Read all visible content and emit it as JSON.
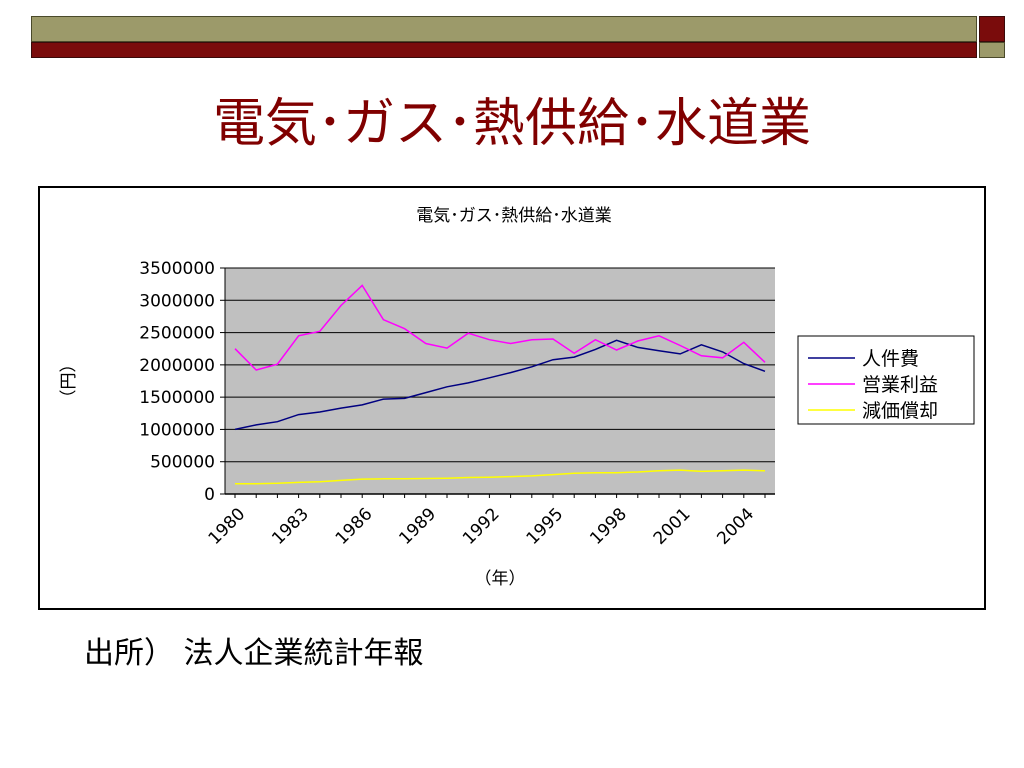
{
  "slide": {
    "title": "電気･ガス･熱供給･水道業",
    "source": "出所） 法人企業統計年報",
    "colors": {
      "accent_red": "#7a0c0c",
      "accent_olive": "#9c9a6a",
      "title": "#800000"
    }
  },
  "chart_data": {
    "type": "line",
    "title": "電気･ガス･熱供給･水道業",
    "xlabel": "（年）",
    "ylabel": "（円）",
    "ylim": [
      0,
      3500000
    ],
    "yticks": [
      0,
      500000,
      1000000,
      1500000,
      2000000,
      2500000,
      3000000,
      3500000
    ],
    "x": [
      1980,
      1981,
      1982,
      1983,
      1984,
      1985,
      1986,
      1987,
      1988,
      1989,
      1990,
      1991,
      1992,
      1993,
      1994,
      1995,
      1996,
      1997,
      1998,
      1999,
      2000,
      2001,
      2002,
      2003,
      2004,
      2005
    ],
    "xtick_labels": [
      "1980",
      "1983",
      "1986",
      "1989",
      "1992",
      "1995",
      "1998",
      "2001",
      "2004"
    ],
    "grid": true,
    "legend_position": "right",
    "plot_background": "#c0c0c0",
    "series": [
      {
        "name": "人件費",
        "color": "#000080",
        "values": [
          1000000,
          1070000,
          1120000,
          1230000,
          1270000,
          1330000,
          1380000,
          1470000,
          1480000,
          1570000,
          1660000,
          1720000,
          1800000,
          1880000,
          1970000,
          2080000,
          2120000,
          2240000,
          2380000,
          2270000,
          2220000,
          2170000,
          2310000,
          2200000,
          2020000,
          1900000
        ]
      },
      {
        "name": "営業利益",
        "color": "#ff00ff",
        "values": [
          2250000,
          1920000,
          2010000,
          2450000,
          2520000,
          2920000,
          3230000,
          2700000,
          2560000,
          2330000,
          2260000,
          2490000,
          2390000,
          2330000,
          2390000,
          2400000,
          2180000,
          2390000,
          2230000,
          2370000,
          2450000,
          2300000,
          2140000,
          2110000,
          2350000,
          2040000
        ]
      },
      {
        "name": "減価償却",
        "color": "#ffff00",
        "values": [
          160000,
          160000,
          165000,
          180000,
          190000,
          210000,
          230000,
          235000,
          235000,
          240000,
          245000,
          255000,
          260000,
          270000,
          280000,
          300000,
          320000,
          330000,
          330000,
          340000,
          360000,
          370000,
          350000,
          360000,
          370000,
          360000
        ]
      }
    ]
  }
}
